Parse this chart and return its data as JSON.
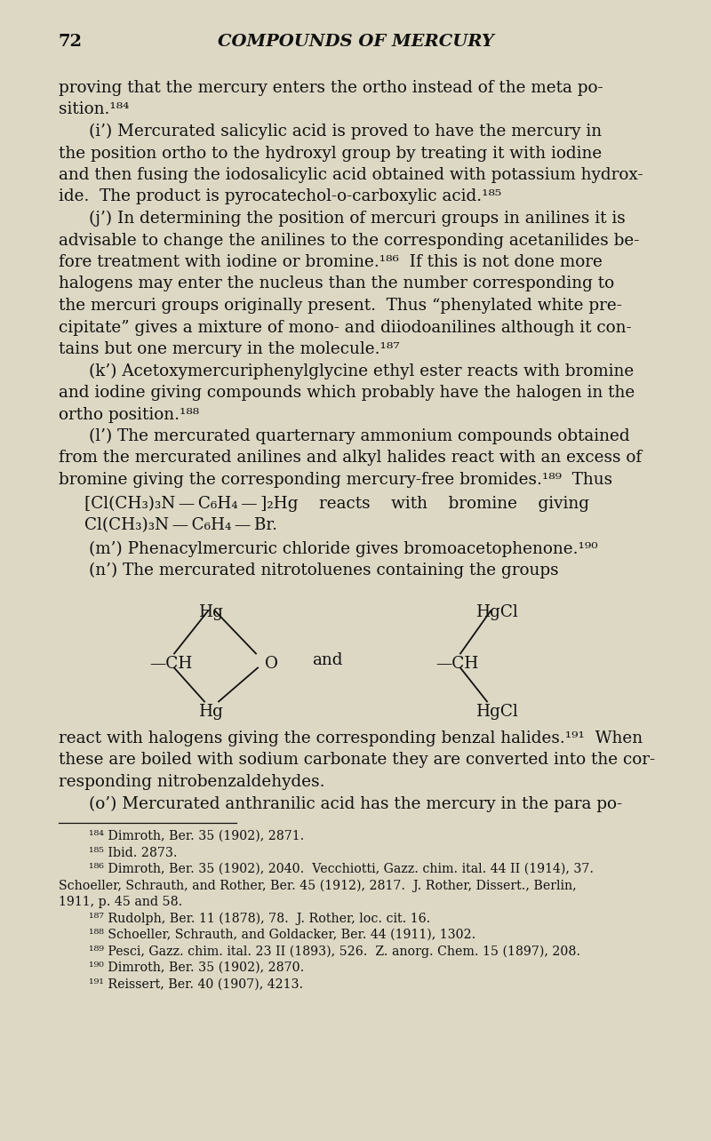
{
  "bg_color": "#ddd8c4",
  "text_color": "#111111",
  "page_number": "72",
  "chapter_title": "COMPOUNDS OF MERCURY",
  "fs_title": 14,
  "fs_body": 13.2,
  "fs_small": 10.2,
  "lm": 0.082,
  "indent": 0.125,
  "para_lines": [
    [
      false,
      "proving that the mercury enters the ortho instead of the meta po-"
    ],
    [
      false,
      "sition.¹⁸⁴"
    ],
    [
      true,
      "(i’) Mercurated salicylic acid is proved to have the mercury in"
    ],
    [
      false,
      "the position ortho to the hydroxyl group by treating it with iodine"
    ],
    [
      false,
      "and then fusing the iodosalicylic acid obtained with potassium hydrox-"
    ],
    [
      false,
      "ide.  The product is pyrocatechol-o-carboxylic acid.¹⁸⁵"
    ],
    [
      true,
      "(j’) In determining the position of mercuri groups in anilines it is"
    ],
    [
      false,
      "advisable to change the anilines to the corresponding acetanilides be-"
    ],
    [
      false,
      "fore treatment with iodine or bromine.¹⁸⁶  If this is not done more"
    ],
    [
      false,
      "halogens may enter the nucleus than the number corresponding to"
    ],
    [
      false,
      "the mercuri groups originally present.  Thus “phenylated white pre-"
    ],
    [
      false,
      "cipitate” gives a mixture of mono- and diiodoanilines although it con-"
    ],
    [
      false,
      "tains but one mercury in the molecule.¹⁸⁷"
    ],
    [
      true,
      "(k’) Acetoxymercuriphenylglycine ethyl ester reacts with bromine"
    ],
    [
      false,
      "and iodine giving compounds which probably have the halogen in the"
    ],
    [
      false,
      "ortho position.¹⁸⁸"
    ],
    [
      true,
      "(l’) The mercurated quarternary ammonium compounds obtained"
    ],
    [
      false,
      "from the mercurated anilines and alkyl halides react with an excess of"
    ],
    [
      false,
      "bromine giving the corresponding mercury-free bromides.¹⁸⁹  Thus"
    ]
  ],
  "formula1": "[Cl(CH₃)₃N — C₆H₄ — ]₂Hg    reacts    with    bromine    giving",
  "formula2": "Cl(CH₃)₃N — C₆H₄ — Br.",
  "para2_lines": [
    [
      true,
      "(m’) Phenacylmercuric chloride gives bromoacetophenone.¹⁹⁰"
    ],
    [
      true,
      "(n’) The mercurated nitrotoluenes containing the groups"
    ]
  ],
  "para3_lines": [
    [
      false,
      "react with halogens giving the corresponding benzal halides.¹⁹¹  When"
    ],
    [
      false,
      "these are boiled with sodium carbonate they are converted into the cor-"
    ],
    [
      false,
      "responding nitrobenzaldehydes."
    ],
    [
      true,
      "(o’) Mercurated anthranilic acid has the mercury in the para po-"
    ]
  ],
  "footnotes": [
    [
      true,
      "¹⁸⁴ Dimroth, Ber. 35 (1902), 2871."
    ],
    [
      true,
      "¹⁸⁵ Ibid. 2873."
    ],
    [
      true,
      "¹⁸⁶ Dimroth, Ber. 35 (1902), 2040.  Vecchiotti, Gazz. chim. ital. 44 II (1914), 37."
    ],
    [
      false,
      "Schoeller, Schrauth, and Rother, Ber. 45 (1912), 2817.  J. Rother, Dissert., Berlin,"
    ],
    [
      false,
      "1911, p. 45 and 58."
    ],
    [
      true,
      "¹⁸⁷ Rudolph, Ber. 11 (1878), 78.  J. Rother, loc. cit. 16."
    ],
    [
      true,
      "¹⁸⁸ Schoeller, Schrauth, and Goldacker, Ber. 44 (1911), 1302."
    ],
    [
      true,
      "¹⁸⁹ Pesci, Gazz. chim. ital. 23 II (1893), 526.  Z. anorg. Chem. 15 (1897), 208."
    ],
    [
      true,
      "¹⁹⁰ Dimroth, Ber. 35 (1902), 2870."
    ],
    [
      true,
      "¹⁹¹ Reissert, Ber. 40 (1907), 4213."
    ]
  ]
}
